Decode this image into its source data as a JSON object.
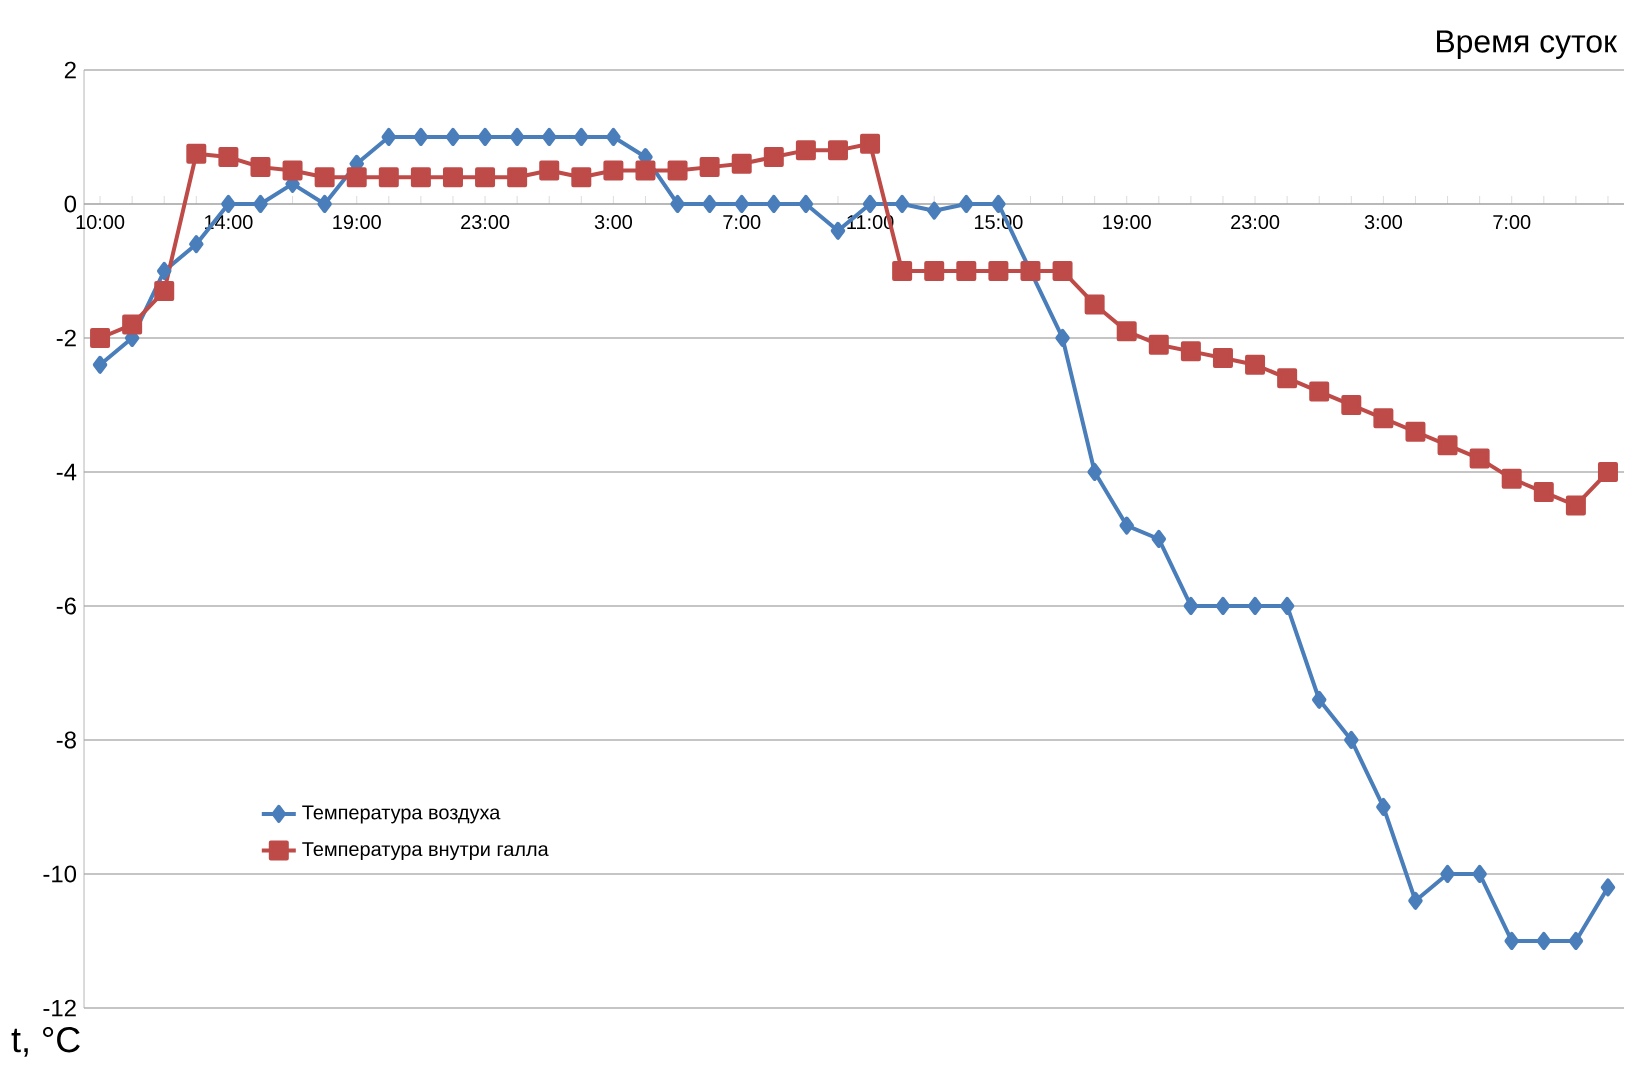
{
  "chart_data": {
    "type": "line",
    "xlabel": "Время суток",
    "ylabel": "t, °C",
    "categories": [
      "10:00",
      null,
      null,
      null,
      "14:00",
      null,
      null,
      null,
      "19:00",
      null,
      null,
      null,
      "23:00",
      null,
      null,
      null,
      "3:00",
      null,
      null,
      null,
      "7:00",
      null,
      null,
      null,
      "11:00",
      null,
      null,
      null,
      "15:00",
      null,
      null,
      null,
      "19:00",
      null,
      null,
      null,
      "23:00",
      null,
      null,
      null,
      "3:00",
      null,
      null,
      null,
      "7:00",
      null,
      null,
      null
    ],
    "series": [
      {
        "name": "Температура воздуха",
        "color": "#4a7ebb",
        "marker": "diamond",
        "values": [
          -2.4,
          -2.0,
          -1.0,
          -0.6,
          0,
          0,
          0.3,
          0,
          0.6,
          1.0,
          1.0,
          1.0,
          1.0,
          1.0,
          1.0,
          1.0,
          1.0,
          0.7,
          0,
          0,
          0,
          0,
          0,
          -0.4,
          0,
          0,
          -0.1,
          0,
          0,
          null,
          -2.0,
          -4.0,
          -4.8,
          -5.0,
          -6.0,
          -6.0,
          -6.0,
          -6.0,
          -7.4,
          -8.0,
          -9.0,
          -10.4,
          -10.0,
          -10.0,
          -11.0,
          -11.0,
          -11.0,
          -10.2
        ]
      },
      {
        "name": "Температура внутри галла",
        "color": "#be4b48",
        "marker": "square",
        "values": [
          -2.0,
          -1.8,
          -1.3,
          0.75,
          0.7,
          0.55,
          0.5,
          0.4,
          0.4,
          0.4,
          0.4,
          0.4,
          0.4,
          0.4,
          0.5,
          0.4,
          0.5,
          0.5,
          0.5,
          0.55,
          0.6,
          0.7,
          0.8,
          0.8,
          0.9,
          -1.0,
          -1.0,
          -1.0,
          -1.0,
          -1.0,
          -1.0,
          -1.5,
          -1.9,
          -2.1,
          -2.2,
          -2.3,
          -2.4,
          -2.6,
          -2.8,
          -3.0,
          -3.2,
          -3.4,
          -3.6,
          -3.8,
          -4.1,
          -4.3,
          -4.5,
          -4.0
        ]
      }
    ],
    "ylim": [
      -12,
      2
    ],
    "yticks": [
      -12,
      -10,
      -8,
      -6,
      -4,
      -2,
      0,
      2
    ],
    "grid": "y",
    "legend": "bottom left",
    "line_style": "solid"
  }
}
